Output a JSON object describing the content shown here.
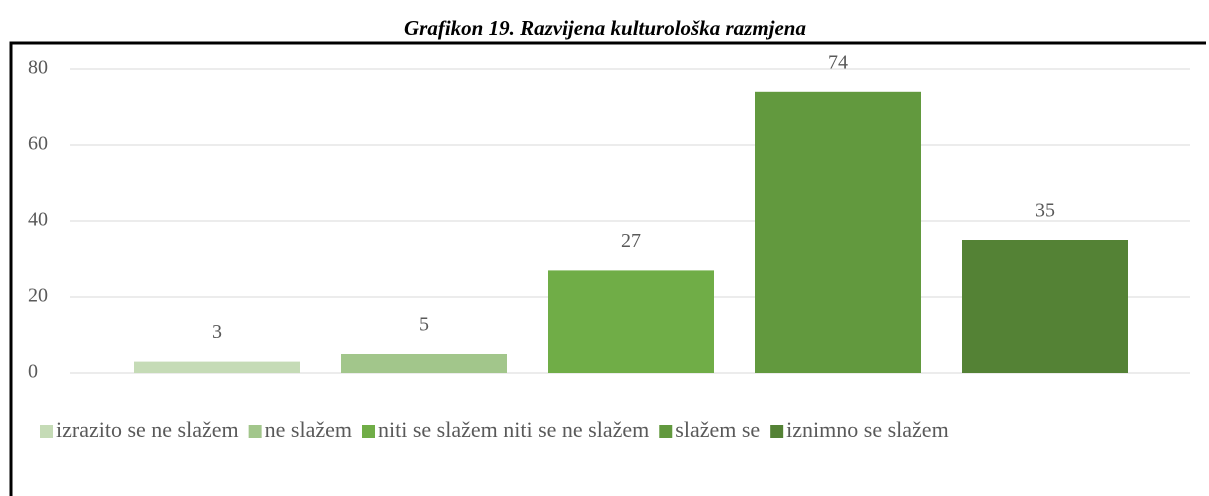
{
  "chart_data": {
    "type": "bar",
    "title": "Grafikon 19. Razvijena kulturološka razmjena",
    "categories": [
      "izrazito se ne slažem",
      "ne slažem",
      "niti se slažem niti se ne slažem",
      "slažem se",
      "iznimno se slažem"
    ],
    "values": [
      3,
      5,
      27,
      74,
      35
    ],
    "colors": [
      "#c5dbb6",
      "#a2c68b",
      "#70ad47",
      "#62993e",
      "#548235"
    ],
    "ylim": [
      0,
      80
    ],
    "yticks": [
      0,
      20,
      40,
      60,
      80
    ],
    "grid": true,
    "legend": "bottom"
  }
}
